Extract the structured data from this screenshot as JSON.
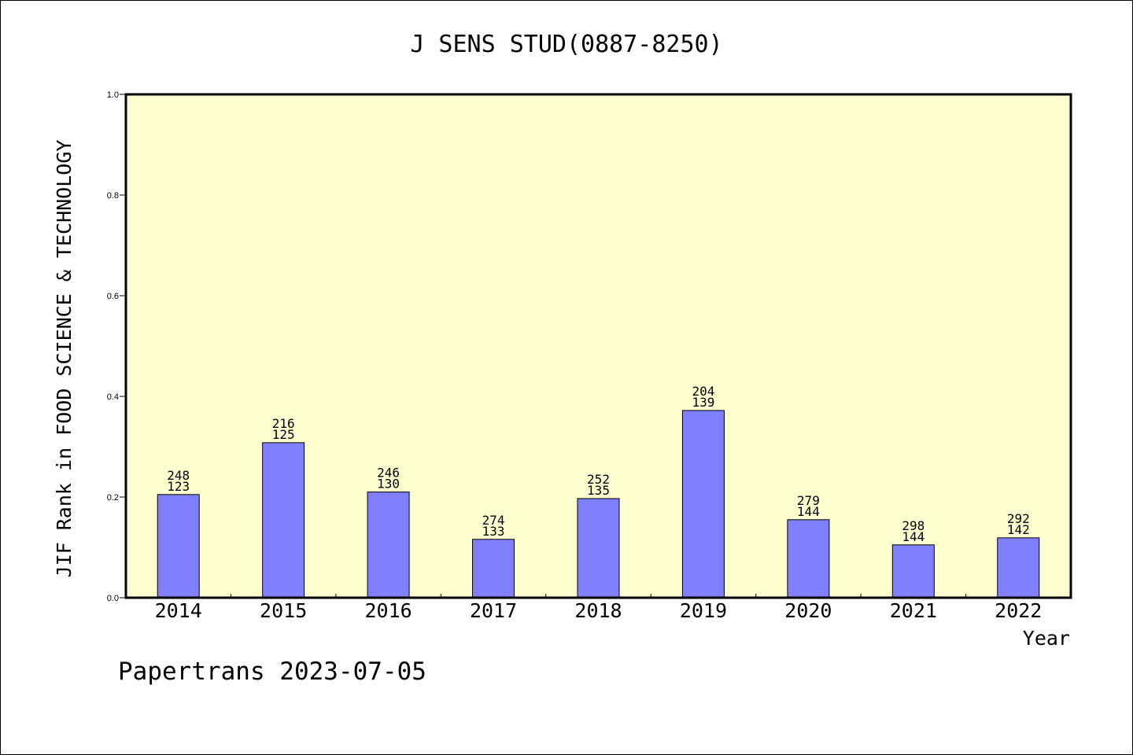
{
  "chart_data": {
    "type": "bar",
    "title": "J SENS STUD(0887-8250)",
    "ylabel": "JIF Rank in FOOD SCIENCE & TECHNOLOGY",
    "xlabel": "Year",
    "ylim": [
      0,
      1.0
    ],
    "yticks": [
      "0.0",
      "0.2",
      "0.4",
      "0.6",
      "0.8",
      "1.0"
    ],
    "categories": [
      "2014",
      "2015",
      "2016",
      "2017",
      "2018",
      "2019",
      "2020",
      "2021",
      "2022"
    ],
    "values": [
      0.205,
      0.308,
      0.21,
      0.116,
      0.197,
      0.372,
      0.155,
      0.105,
      0.119
    ],
    "label_top": [
      "248",
      "216",
      "246",
      "274",
      "252",
      "204",
      "279",
      "298",
      "292"
    ],
    "label_bottom": [
      "123",
      "125",
      "130",
      "133",
      "135",
      "139",
      "144",
      "144",
      "142"
    ],
    "colors": {
      "plot_background": "#ffffd0",
      "bar_fill": "#8080ff",
      "bar_stroke": "#000000"
    },
    "grid": false,
    "legend": "none"
  },
  "footer": {
    "watermark": "Papertrans 2023-07-05"
  }
}
